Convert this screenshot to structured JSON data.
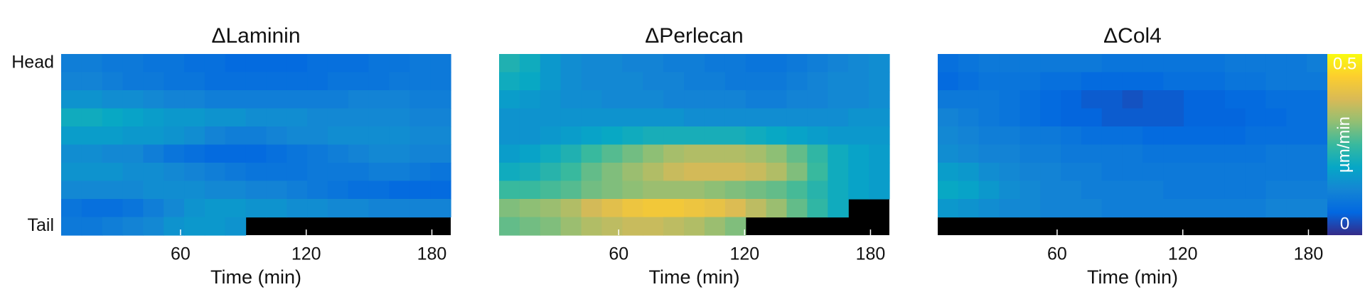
{
  "chart_data": [
    {
      "type": "heatmap",
      "title": "ΔLaminin",
      "xlabel": "Time (min)",
      "colormap": "parula",
      "clim": [
        0,
        0.5
      ],
      "xlim": [
        3,
        189
      ],
      "xticks": [
        60,
        120,
        180
      ],
      "ylim": [
        -0.5,
        9.5
      ],
      "yticks": [
        {
          "value": 0,
          "label": "Head"
        },
        {
          "value": 9,
          "label": "Tail"
        }
      ],
      "values": [
        [
          0.11,
          0.11,
          0.1,
          0.1,
          0.09,
          0.09,
          0.08,
          0.08,
          0.07,
          0.07,
          0.07,
          0.07,
          0.08,
          0.08,
          0.08,
          0.09,
          0.09,
          0.1,
          0.1
        ],
        [
          0.12,
          0.12,
          0.11,
          0.1,
          0.1,
          0.09,
          0.09,
          0.08,
          0.08,
          0.08,
          0.08,
          0.08,
          0.08,
          0.09,
          0.09,
          0.09,
          0.1,
          0.1,
          0.1
        ],
        [
          0.15,
          0.15,
          0.14,
          0.14,
          0.13,
          0.12,
          0.12,
          0.11,
          0.11,
          0.11,
          0.11,
          0.11,
          0.11,
          0.11,
          0.12,
          0.12,
          0.12,
          0.11,
          0.11
        ],
        [
          0.2,
          0.2,
          0.19,
          0.18,
          0.17,
          0.16,
          0.16,
          0.15,
          0.15,
          0.14,
          0.14,
          0.14,
          0.13,
          0.13,
          0.13,
          0.13,
          0.13,
          0.12,
          0.12
        ],
        [
          0.17,
          0.17,
          0.17,
          0.16,
          0.16,
          0.15,
          0.14,
          0.12,
          0.11,
          0.11,
          0.12,
          0.13,
          0.13,
          0.14,
          0.14,
          0.14,
          0.14,
          0.13,
          0.13
        ],
        [
          0.14,
          0.14,
          0.13,
          0.13,
          0.11,
          0.09,
          0.08,
          0.07,
          0.07,
          0.07,
          0.08,
          0.09,
          0.1,
          0.11,
          0.12,
          0.13,
          0.13,
          0.12,
          0.12
        ],
        [
          0.15,
          0.15,
          0.15,
          0.14,
          0.14,
          0.13,
          0.12,
          0.11,
          0.1,
          0.09,
          0.09,
          0.09,
          0.1,
          0.1,
          0.1,
          0.11,
          0.11,
          0.1,
          0.09
        ],
        [
          0.13,
          0.13,
          0.13,
          0.13,
          0.14,
          0.14,
          0.14,
          0.13,
          0.13,
          0.12,
          0.12,
          0.11,
          0.1,
          0.09,
          0.08,
          0.08,
          0.07,
          0.07,
          0.07
        ],
        [
          0.09,
          0.08,
          0.08,
          0.09,
          0.11,
          0.13,
          0.15,
          0.16,
          0.16,
          0.15,
          0.15,
          0.14,
          0.14,
          0.13,
          0.13,
          0.12,
          0.12,
          0.12,
          0.12
        ],
        [
          0.1,
          0.1,
          0.11,
          0.12,
          0.13,
          0.15,
          0.16,
          0.16,
          0.15,
          null,
          null,
          null,
          null,
          null,
          null,
          null,
          null,
          null,
          null
        ]
      ]
    },
    {
      "type": "heatmap",
      "title": "ΔPerlecan",
      "xlabel": "Time (min)",
      "colormap": "parula",
      "clim": [
        0,
        0.5
      ],
      "xlim": [
        3,
        189
      ],
      "xticks": [
        60,
        120,
        180
      ],
      "ylim": [
        -0.5,
        9.5
      ],
      "values": [
        [
          0.22,
          0.2,
          0.16,
          0.14,
          0.13,
          0.13,
          0.12,
          0.12,
          0.11,
          0.11,
          0.1,
          0.1,
          0.09,
          0.09,
          0.1,
          0.11,
          0.12,
          0.13,
          0.14
        ],
        [
          0.2,
          0.19,
          0.16,
          0.14,
          0.13,
          0.13,
          0.13,
          0.12,
          0.12,
          0.11,
          0.11,
          0.1,
          0.1,
          0.1,
          0.11,
          0.12,
          0.13,
          0.13,
          0.14
        ],
        [
          0.17,
          0.16,
          0.15,
          0.14,
          0.14,
          0.13,
          0.13,
          0.13,
          0.12,
          0.12,
          0.12,
          0.12,
          0.11,
          0.11,
          0.12,
          0.12,
          0.13,
          0.13,
          0.14
        ],
        [
          0.15,
          0.15,
          0.15,
          0.15,
          0.15,
          0.15,
          0.15,
          0.15,
          0.15,
          0.14,
          0.14,
          0.14,
          0.14,
          0.14,
          0.14,
          0.14,
          0.14,
          0.15,
          0.15
        ],
        [
          0.15,
          0.15,
          0.16,
          0.17,
          0.18,
          0.19,
          0.2,
          0.21,
          0.21,
          0.21,
          0.21,
          0.21,
          0.2,
          0.19,
          0.18,
          0.17,
          0.16,
          0.16,
          0.16
        ],
        [
          0.17,
          0.18,
          0.2,
          0.22,
          0.25,
          0.27,
          0.29,
          0.31,
          0.33,
          0.34,
          0.34,
          0.34,
          0.33,
          0.31,
          0.28,
          0.24,
          0.2,
          0.18,
          0.17
        ],
        [
          0.2,
          0.21,
          0.23,
          0.25,
          0.28,
          0.3,
          0.32,
          0.34,
          0.36,
          0.37,
          0.37,
          0.37,
          0.36,
          0.34,
          0.3,
          0.25,
          0.2,
          0.18,
          0.17
        ],
        [
          0.25,
          0.25,
          0.26,
          0.27,
          0.29,
          0.3,
          0.31,
          0.32,
          0.32,
          0.32,
          0.31,
          0.3,
          0.29,
          0.28,
          0.26,
          0.23,
          0.2,
          0.18,
          0.17
        ],
        [
          0.3,
          0.31,
          0.32,
          0.34,
          0.37,
          0.39,
          0.41,
          0.42,
          0.42,
          0.41,
          0.4,
          0.38,
          0.35,
          0.32,
          0.28,
          0.24,
          0.2,
          null,
          null
        ],
        [
          0.28,
          0.29,
          0.3,
          0.32,
          0.34,
          0.35,
          0.36,
          0.36,
          0.35,
          0.34,
          0.32,
          0.3,
          null,
          null,
          null,
          null,
          null,
          null,
          null
        ]
      ]
    },
    {
      "type": "heatmap",
      "title": "ΔCol4",
      "xlabel": "Time (min)",
      "colormap": "parula",
      "clim": [
        0,
        0.5
      ],
      "xlim": [
        3,
        189
      ],
      "xticks": [
        60,
        120,
        180
      ],
      "ylim": [
        -0.5,
        9.5
      ],
      "colorbar": {
        "label": "µm/min",
        "ticks": [
          0,
          0.5
        ]
      },
      "values": [
        [
          0.08,
          0.09,
          0.1,
          0.1,
          0.1,
          0.1,
          0.1,
          0.1,
          0.09,
          0.09,
          0.09,
          0.09,
          0.09,
          0.09,
          0.1,
          0.1,
          0.1,
          0.1,
          0.11
        ],
        [
          0.07,
          0.08,
          0.09,
          0.09,
          0.09,
          0.08,
          0.08,
          0.07,
          0.07,
          0.07,
          0.07,
          0.08,
          0.08,
          0.08,
          0.09,
          0.09,
          0.1,
          0.1,
          0.1
        ],
        [
          0.1,
          0.1,
          0.1,
          0.09,
          0.08,
          0.07,
          0.06,
          0.05,
          0.05,
          0.04,
          0.05,
          0.05,
          0.06,
          0.06,
          0.07,
          0.07,
          0.08,
          0.08,
          0.08
        ],
        [
          0.12,
          0.11,
          0.1,
          0.09,
          0.08,
          0.07,
          0.06,
          0.06,
          0.05,
          0.05,
          0.05,
          0.05,
          0.06,
          0.06,
          0.06,
          0.07,
          0.07,
          0.08,
          0.08
        ],
        [
          0.13,
          0.12,
          0.11,
          0.11,
          0.1,
          0.1,
          0.09,
          0.08,
          0.08,
          0.08,
          0.07,
          0.07,
          0.07,
          0.07,
          0.07,
          0.08,
          0.08,
          0.08,
          0.08
        ],
        [
          0.14,
          0.13,
          0.12,
          0.12,
          0.11,
          0.11,
          0.1,
          0.1,
          0.1,
          0.1,
          0.09,
          0.09,
          0.09,
          0.09,
          0.09,
          0.09,
          0.1,
          0.1,
          0.1
        ],
        [
          0.17,
          0.16,
          0.14,
          0.13,
          0.12,
          0.12,
          0.11,
          0.11,
          0.1,
          0.1,
          0.1,
          0.1,
          0.1,
          0.1,
          0.1,
          0.1,
          0.1,
          0.1,
          0.1
        ],
        [
          0.19,
          0.18,
          0.16,
          0.14,
          0.13,
          0.12,
          0.12,
          0.11,
          0.11,
          0.11,
          0.11,
          0.1,
          0.1,
          0.1,
          0.1,
          0.1,
          0.11,
          0.11,
          0.11
        ],
        [
          0.16,
          0.15,
          0.14,
          0.13,
          0.13,
          0.12,
          0.12,
          0.12,
          0.11,
          0.11,
          0.11,
          0.11,
          0.11,
          0.11,
          0.11,
          0.11,
          0.12,
          0.12,
          0.12
        ],
        [
          null,
          null,
          null,
          null,
          null,
          null,
          null,
          null,
          null,
          null,
          null,
          null,
          null,
          null,
          null,
          null,
          null,
          null,
          null
        ]
      ]
    }
  ]
}
